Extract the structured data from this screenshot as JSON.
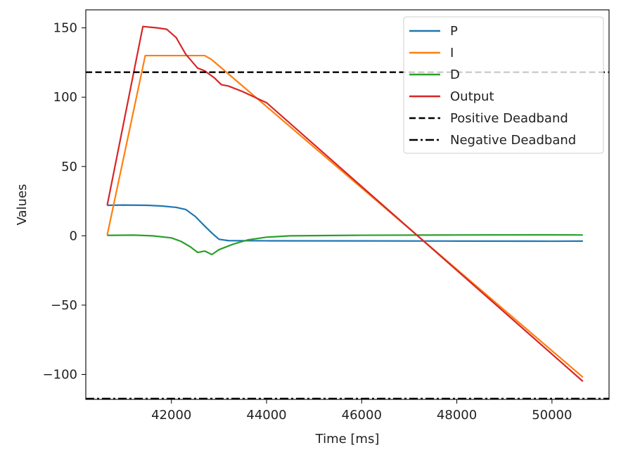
{
  "chart_data": {
    "type": "line",
    "title": "",
    "xlabel": "Time [ms]",
    "ylabel": "Values",
    "xlim": [
      40200,
      51200
    ],
    "ylim": [
      -118,
      163
    ],
    "xticks": [
      42000,
      44000,
      46000,
      48000,
      50000
    ],
    "yticks": [
      -100,
      -50,
      0,
      50,
      100,
      150
    ],
    "xtick_labels": [
      "42000",
      "44000",
      "46000",
      "48000",
      "50000"
    ],
    "ytick_labels": [
      "−100",
      "−50",
      "0",
      "50",
      "100",
      "150"
    ],
    "grid": false,
    "legend_position": "top-right",
    "series": [
      {
        "name": "P",
        "color": "#1f77b4",
        "style": "solid",
        "points": [
          [
            40650,
            22
          ],
          [
            41000,
            22.2
          ],
          [
            41500,
            22
          ],
          [
            41800,
            21.5
          ],
          [
            42100,
            20.5
          ],
          [
            42300,
            19
          ],
          [
            42500,
            14
          ],
          [
            42700,
            7
          ],
          [
            42850,
            2
          ],
          [
            43000,
            -2.5
          ],
          [
            43200,
            -3.5
          ],
          [
            44000,
            -3.6
          ],
          [
            46000,
            -3.7
          ],
          [
            48000,
            -3.8
          ],
          [
            50000,
            -3.9
          ],
          [
            50650,
            -3.8
          ]
        ]
      },
      {
        "name": "I",
        "color": "#ff7f0e",
        "style": "solid",
        "points": [
          [
            40650,
            0.5
          ],
          [
            41450,
            130
          ],
          [
            42700,
            130
          ],
          [
            42850,
            127
          ],
          [
            50650,
            -102
          ]
        ]
      },
      {
        "name": "D",
        "color": "#2ca02c",
        "style": "solid",
        "points": [
          [
            40650,
            0.3
          ],
          [
            41200,
            0.5
          ],
          [
            41600,
            0
          ],
          [
            42000,
            -1.5
          ],
          [
            42200,
            -4
          ],
          [
            42400,
            -8
          ],
          [
            42550,
            -12
          ],
          [
            42700,
            -11
          ],
          [
            42850,
            -13.5
          ],
          [
            43000,
            -10
          ],
          [
            43300,
            -6
          ],
          [
            43600,
            -3
          ],
          [
            44000,
            -1
          ],
          [
            44500,
            0
          ],
          [
            46000,
            0.4
          ],
          [
            48000,
            0.6
          ],
          [
            50000,
            0.7
          ],
          [
            50650,
            0.6
          ]
        ]
      },
      {
        "name": "Output",
        "color": "#d62728",
        "style": "solid",
        "points": [
          [
            40650,
            22
          ],
          [
            41400,
            151
          ],
          [
            41700,
            150
          ],
          [
            41900,
            149
          ],
          [
            42100,
            143
          ],
          [
            42300,
            131
          ],
          [
            42550,
            121
          ],
          [
            42700,
            119
          ],
          [
            42900,
            114
          ],
          [
            43050,
            109
          ],
          [
            43200,
            108
          ],
          [
            43500,
            104
          ],
          [
            44000,
            96
          ],
          [
            50650,
            -105
          ]
        ]
      },
      {
        "name": "Positive Deadband",
        "color": "#000000",
        "style": "dashed",
        "points": [
          [
            40200,
            118
          ],
          [
            51200,
            118
          ]
        ]
      },
      {
        "name": "Negative Deadband",
        "color": "#000000",
        "style": "dashdot",
        "points": [
          [
            40200,
            -117.5
          ],
          [
            51200,
            -117.5
          ]
        ]
      }
    ]
  }
}
